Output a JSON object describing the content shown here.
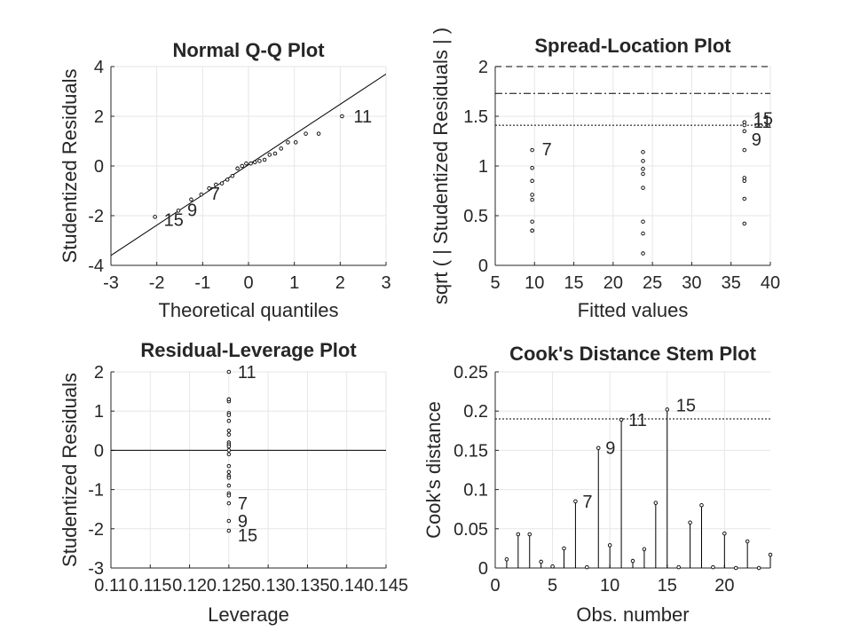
{
  "chart_data": [
    {
      "id": "qq",
      "type": "scatter",
      "title": "Normal Q-Q Plot",
      "xlabel": "Theoretical quantiles",
      "ylabel": "Studentized Residuals",
      "xlim": [
        -3,
        3
      ],
      "ylim": [
        -4,
        4
      ],
      "xticks": [
        -3,
        -2,
        -1,
        0,
        1,
        2,
        3
      ],
      "xtick_labels": [
        "-3",
        "-2",
        "-1",
        "0",
        "1",
        "2",
        "3"
      ],
      "yticks": [
        -4,
        -2,
        0,
        2,
        4
      ],
      "ytick_labels": [
        "-4",
        "-2",
        "0",
        "2",
        "4"
      ],
      "grid": true,
      "reference_line": {
        "x": [
          -3,
          3
        ],
        "y": [
          -3.6,
          3.7
        ]
      },
      "x": [
        -2.04,
        -1.53,
        -1.25,
        -1.03,
        -0.86,
        -0.71,
        -0.58,
        -0.46,
        -0.35,
        -0.24,
        -0.14,
        -0.05,
        0.05,
        0.14,
        0.24,
        0.35,
        0.46,
        0.58,
        0.71,
        0.86,
        1.03,
        1.25,
        1.53,
        2.04
      ],
      "y": [
        -2.05,
        -1.8,
        -1.35,
        -1.15,
        -0.9,
        -0.75,
        -0.7,
        -0.55,
        -0.4,
        -0.1,
        0.0,
        0.1,
        0.1,
        0.15,
        0.2,
        0.25,
        0.45,
        0.5,
        0.7,
        0.95,
        0.95,
        1.3,
        1.3,
        2.0
      ],
      "annotations": [
        {
          "text": "15",
          "x": -2.04,
          "y": -2.05
        },
        {
          "text": "9",
          "x": -1.53,
          "y": -1.8
        },
        {
          "text": "7",
          "x": -1.03,
          "y": -1.15
        },
        {
          "text": "11",
          "x": 2.04,
          "y": 2.0
        }
      ]
    },
    {
      "id": "sl",
      "type": "scatter",
      "title": "Spread-Location Plot",
      "xlabel": "Fitted values",
      "ylabel": "sqrt ( | Studentized Residuals | )",
      "xlim": [
        5,
        40
      ],
      "ylim": [
        0,
        2
      ],
      "xticks": [
        5,
        10,
        15,
        20,
        25,
        30,
        35,
        40
      ],
      "xtick_labels": [
        "5",
        "10",
        "15",
        "20",
        "25",
        "30",
        "35",
        "40"
      ],
      "yticks": [
        0,
        0.5,
        1,
        1.5,
        2
      ],
      "ytick_labels": [
        "0",
        "0.5",
        "1",
        "1.5",
        "2"
      ],
      "grid": true,
      "reference_lines": [
        {
          "y": 2.0,
          "style": "dashed"
        },
        {
          "y": 1.73,
          "style": "dashdot"
        },
        {
          "y": 1.41,
          "style": "dotted"
        }
      ],
      "x": [
        9.7,
        9.7,
        9.7,
        9.7,
        9.7,
        9.7,
        9.7,
        9.7,
        23.8,
        23.8,
        23.8,
        23.8,
        23.8,
        23.8,
        23.8,
        23.8,
        36.7,
        36.7,
        36.7,
        36.7,
        36.7,
        36.7,
        36.7,
        36.7
      ],
      "y": [
        1.16,
        0.98,
        0.85,
        0.71,
        0.66,
        0.44,
        0.35,
        0.35,
        1.14,
        1.05,
        0.97,
        0.92,
        0.78,
        0.44,
        0.32,
        0.12,
        1.44,
        1.41,
        1.35,
        1.16,
        0.88,
        0.85,
        0.67,
        0.42
      ],
      "annotations": [
        {
          "text": "7",
          "x": 9.7,
          "y": 1.16
        },
        {
          "text": "15",
          "x": 36.7,
          "y": 1.44
        },
        {
          "text": "11",
          "x": 36.7,
          "y": 1.41
        },
        {
          "text": "9",
          "x": 36.7,
          "y": 1.35
        }
      ]
    },
    {
      "id": "rl",
      "type": "scatter",
      "title": "Residual-Leverage Plot",
      "xlabel": "Leverage",
      "ylabel": "Studentized Residuals",
      "xlim": [
        0.11,
        0.145
      ],
      "ylim": [
        -3,
        2
      ],
      "xticks": [
        0.11,
        0.115,
        0.12,
        0.125,
        0.13,
        0.135,
        0.14,
        0.145
      ],
      "xtick_labels": [
        "0.11",
        "0.115",
        "0.12",
        "0.125",
        "0.13",
        "0.135",
        "0.14",
        "0.145"
      ],
      "yticks": [
        -3,
        -2,
        -1,
        0,
        1,
        2
      ],
      "ytick_labels": [
        "-3",
        "-2",
        "-1",
        "0",
        "1",
        "2"
      ],
      "grid": true,
      "reference_line": {
        "y": 0
      },
      "x": [
        0.125,
        0.125,
        0.125,
        0.125,
        0.125,
        0.125,
        0.125,
        0.125,
        0.125,
        0.125,
        0.125,
        0.125,
        0.125,
        0.125,
        0.125,
        0.125,
        0.125,
        0.125,
        0.125,
        0.125,
        0.125,
        0.125,
        0.125,
        0.125
      ],
      "y": [
        2.0,
        1.3,
        1.25,
        0.95,
        0.75,
        0.5,
        0.4,
        0.2,
        0.15,
        0.1,
        0.0,
        -0.1,
        -0.4,
        -0.55,
        -0.65,
        -0.7,
        -0.9,
        -1.1,
        -1.15,
        -1.35,
        -1.8,
        -2.05,
        1.3,
        0.9
      ],
      "annotations": [
        {
          "text": "11",
          "x": 0.125,
          "y": 2.0
        },
        {
          "text": "7",
          "x": 0.125,
          "y": -1.35
        },
        {
          "text": "9",
          "x": 0.125,
          "y": -1.8
        },
        {
          "text": "15",
          "x": 0.125,
          "y": -2.05
        }
      ]
    },
    {
      "id": "cd",
      "type": "bar",
      "title": "Cook's Distance Stem Plot",
      "xlabel": "Obs. number",
      "ylabel": "Cook's distance",
      "xlim": [
        0,
        24
      ],
      "ylim": [
        0,
        0.25
      ],
      "xticks": [
        0,
        5,
        10,
        15,
        20
      ],
      "xtick_labels": [
        "0",
        "5",
        "10",
        "15",
        "20"
      ],
      "yticks": [
        0,
        0.05,
        0.1,
        0.15,
        0.2,
        0.25
      ],
      "ytick_labels": [
        "0",
        "0.05",
        "0.1",
        "0.15",
        "0.2",
        "0.25"
      ],
      "grid": true,
      "reference_line": {
        "y": 0.19,
        "style": "dotted"
      },
      "x": [
        1,
        2,
        3,
        4,
        5,
        6,
        7,
        8,
        9,
        10,
        11,
        12,
        13,
        14,
        15,
        16,
        17,
        18,
        19,
        20,
        21,
        22,
        23,
        24
      ],
      "y": [
        0.011,
        0.043,
        0.043,
        0.008,
        0.002,
        0.025,
        0.085,
        0.001,
        0.153,
        0.029,
        0.189,
        0.009,
        0.024,
        0.083,
        0.202,
        0.001,
        0.058,
        0.08,
        0.001,
        0.044,
        0.0,
        0.034,
        0.0,
        0.017
      ],
      "annotations": [
        {
          "text": "7",
          "x": 7,
          "y": 0.085
        },
        {
          "text": "9",
          "x": 9,
          "y": 0.153
        },
        {
          "text": "11",
          "x": 11,
          "y": 0.189
        },
        {
          "text": "15",
          "x": 15,
          "y": 0.202
        }
      ]
    }
  ]
}
